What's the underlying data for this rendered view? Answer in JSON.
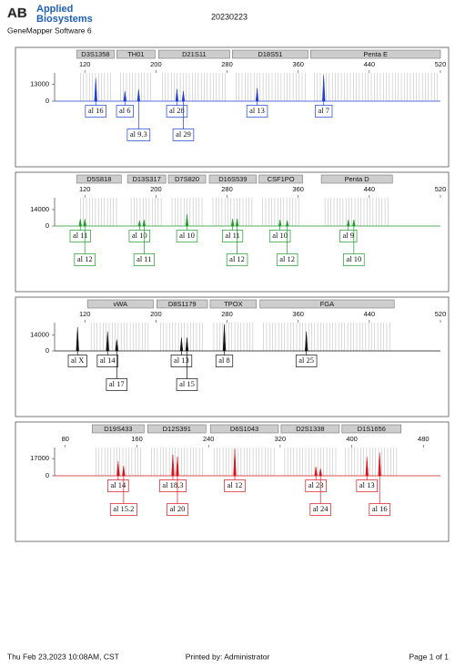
{
  "header": {
    "logo_mark": "AB",
    "logo_lines": [
      "Applied",
      "Biosystems"
    ],
    "software": "GeneMapper Software 6",
    "sample": "20230223"
  },
  "chart_data": [
    {
      "type": "electropherogram",
      "color": "#1f3fd0",
      "xlim": [
        86,
        520
      ],
      "xticks": [
        120,
        200,
        280,
        360,
        440,
        520
      ],
      "ylim": [
        0,
        22000
      ],
      "yticks": [
        0,
        13000
      ],
      "loci": [
        {
          "name": "D3S1358",
          "range": [
            111,
            153
          ]
        },
        {
          "name": "TH01",
          "range": [
            156,
            199
          ]
        },
        {
          "name": "D21S11",
          "range": [
            203,
            283
          ]
        },
        {
          "name": "D18S51",
          "range": [
            286,
            371
          ]
        },
        {
          "name": "Penta E",
          "range": [
            374,
            520
          ]
        }
      ],
      "peaks": [
        {
          "x": 132.3,
          "height": 18000,
          "allele": "al 16"
        },
        {
          "x": 165.1,
          "height": 7900,
          "allele": "al 6"
        },
        {
          "x": 180.5,
          "height": 9400,
          "allele": "al 9.3"
        },
        {
          "x": 223.6,
          "height": 9400,
          "allele": "al 28"
        },
        {
          "x": 230.8,
          "height": 7900,
          "allele": "al 29"
        },
        {
          "x": 313.8,
          "height": 10100,
          "allele": "al 13"
        },
        {
          "x": 388.7,
          "height": 20200,
          "allele": "al 7"
        }
      ]
    },
    {
      "type": "electropherogram",
      "color": "#1f9a2a",
      "xlim": [
        86,
        520
      ],
      "xticks": [
        120,
        200,
        280,
        360,
        440,
        520
      ],
      "ylim": [
        0,
        24000
      ],
      "yticks": [
        0,
        14000
      ],
      "loci": [
        {
          "name": "D5S818",
          "range": [
            111,
            161
          ]
        },
        {
          "name": "D13S317",
          "range": [
            168,
            211
          ]
        },
        {
          "name": "D7S820",
          "range": [
            214,
            256
          ]
        },
        {
          "name": "D16S539",
          "range": [
            260,
            313
          ]
        },
        {
          "name": "CSF1PO",
          "range": [
            316,
            365
          ]
        },
        {
          "name": "Penta D",
          "range": [
            386,
            466
          ]
        }
      ],
      "peaks": [
        {
          "x": 114.9,
          "height": 6200,
          "allele": "al 11"
        },
        {
          "x": 120,
          "height": 6200,
          "allele": "al 12"
        },
        {
          "x": 181.5,
          "height": 4700,
          "allele": "al 10"
        },
        {
          "x": 186.7,
          "height": 5400,
          "allele": "al 11"
        },
        {
          "x": 234.9,
          "height": 10100,
          "allele": "al 10"
        },
        {
          "x": 286.2,
          "height": 6200,
          "allele": "al 11"
        },
        {
          "x": 291.3,
          "height": 6200,
          "allele": "al 12"
        },
        {
          "x": 339.5,
          "height": 5400,
          "allele": "al 10"
        },
        {
          "x": 347.7,
          "height": 4700,
          "allele": "al 12"
        },
        {
          "x": 416.4,
          "height": 5400,
          "allele": "al 9"
        },
        {
          "x": 422.6,
          "height": 5400,
          "allele": "al 10"
        }
      ]
    },
    {
      "type": "electropherogram",
      "color": "#111111",
      "xlim": [
        86,
        520
      ],
      "xticks": [
        120,
        200,
        280,
        360,
        440,
        520
      ],
      "ylim": [
        0,
        25000
      ],
      "yticks": [
        0,
        14000
      ],
      "loci": [
        {
          "name": "vWA",
          "range": [
            123,
            197
          ]
        },
        {
          "name": "D8S1179",
          "range": [
            201,
            258
          ]
        },
        {
          "name": "TPOX",
          "range": [
            261,
            313
          ]
        },
        {
          "name": "FGA",
          "range": [
            317,
            468
          ]
        }
      ],
      "peaks": [
        {
          "x": 111.8,
          "height": 21000,
          "allele": "al X"
        },
        {
          "x": 145.6,
          "height": 17100,
          "allele": "al 14"
        },
        {
          "x": 155.9,
          "height": 10100,
          "allele": "al 17"
        },
        {
          "x": 228.7,
          "height": 11700,
          "allele": "al 13"
        },
        {
          "x": 234.9,
          "height": 11700,
          "allele": "al 15"
        },
        {
          "x": 276.9,
          "height": 23300,
          "allele": "al 8"
        },
        {
          "x": 369.2,
          "height": 17100,
          "allele": "al 25"
        }
      ]
    },
    {
      "type": "electropherogram",
      "color": "#d8141c",
      "xlim": [
        68,
        499
      ],
      "xticks": [
        80,
        160,
        240,
        320,
        400,
        480
      ],
      "ylim": [
        0,
        28000
      ],
      "yticks": [
        0,
        17000
      ],
      "loci": [
        {
          "name": "D19S433",
          "range": [
            110,
            168
          ]
        },
        {
          "name": "D12S391",
          "range": [
            172,
            237
          ]
        },
        {
          "name": "D6S1043",
          "range": [
            242,
            318
          ]
        },
        {
          "name": "D2S1338",
          "range": [
            321,
            386
          ]
        },
        {
          "name": "D1S1656",
          "range": [
            389,
            455
          ]
        }
      ],
      "peaks": [
        {
          "x": 139,
          "height": 14300,
          "allele": "al 14"
        },
        {
          "x": 145.1,
          "height": 9800,
          "allele": "al 15.2"
        },
        {
          "x": 200.1,
          "height": 21000,
          "allele": "al 18.3"
        },
        {
          "x": 205.2,
          "height": 18800,
          "allele": "al 20"
        },
        {
          "x": 269.3,
          "height": 26800,
          "allele": "al 12"
        },
        {
          "x": 359.9,
          "height": 9000,
          "allele": "al 23"
        },
        {
          "x": 365,
          "height": 7200,
          "allele": "al 24"
        },
        {
          "x": 416.9,
          "height": 18800,
          "allele": "al 13"
        },
        {
          "x": 431.1,
          "height": 23000,
          "allele": "al 16"
        }
      ]
    }
  ],
  "footer": {
    "timestamp": "Thu Feb 23,2023 10:08AM, CST",
    "printed_by": "Printed by: Administrator",
    "page": "Page 1 of 1"
  }
}
